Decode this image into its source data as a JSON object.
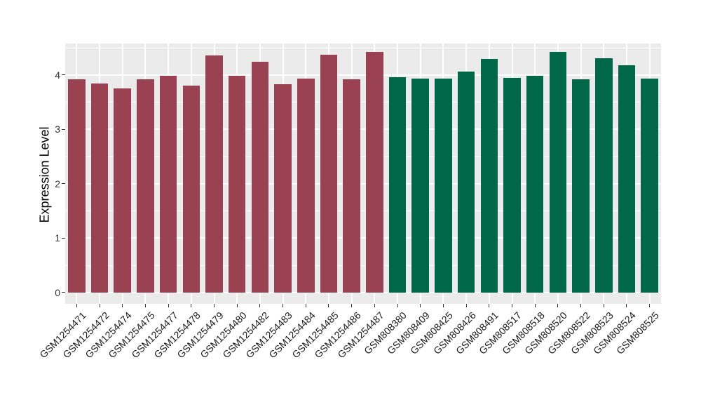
{
  "figure": {
    "background": "#FFFFFF"
  },
  "chart_data": {
    "type": "bar",
    "title": "",
    "xlabel": "",
    "ylabel": "Expression Level",
    "ylim": [
      -0.21,
      4.58
    ],
    "yticks": [
      0,
      1,
      2,
      3,
      4
    ],
    "grid": true,
    "legend": "none",
    "panel_bg": "#EBEBEB",
    "grid_color": "#FFFFFF",
    "bar_width_ratio": 0.75,
    "categories": [
      "GSM1254471",
      "GSM1254472",
      "GSM1254474",
      "GSM1254475",
      "GSM1254477",
      "GSM1254478",
      "GSM1254479",
      "GSM1254480",
      "GSM1254482",
      "GSM1254483",
      "GSM1254484",
      "GSM1254485",
      "GSM1254486",
      "GSM1254487",
      "GSM808380",
      "GSM808409",
      "GSM808425",
      "GSM808426",
      "GSM808491",
      "GSM808517",
      "GSM808518",
      "GSM808520",
      "GSM808522",
      "GSM808523",
      "GSM808524",
      "GSM808525"
    ],
    "values": [
      3.92,
      3.85,
      3.76,
      3.92,
      3.98,
      3.81,
      4.36,
      3.98,
      4.24,
      3.83,
      3.93,
      4.37,
      3.92,
      4.42,
      3.96,
      3.93,
      3.94,
      4.07,
      4.3,
      3.95,
      3.99,
      4.42,
      3.92,
      4.31,
      4.18,
      3.94
    ],
    "bar_groups": [
      {
        "color": "#9A4252",
        "count": 14
      },
      {
        "color": "#006747",
        "count": 12
      }
    ]
  }
}
